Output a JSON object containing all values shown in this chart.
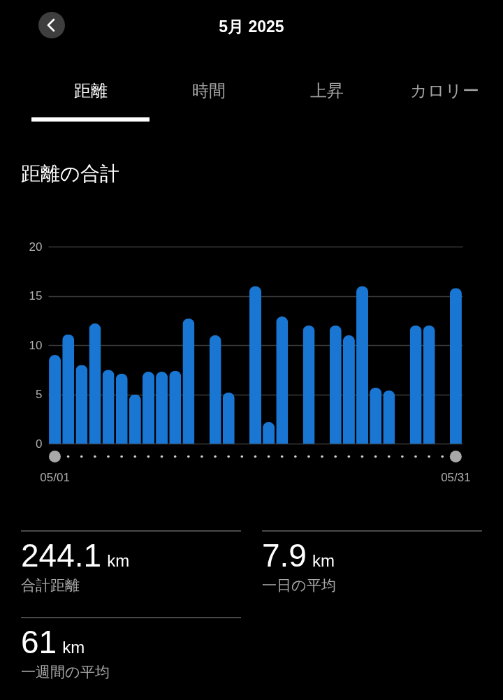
{
  "chart_data": [
    {
      "type": "other",
      "title": "5月 2025",
      "annotations": [
        "距離",
        "時間",
        "上昇",
        "カロリー"
      ]
    },
    {
      "type": "bar",
      "title": "距離の合計",
      "categories": [
        "05/01",
        null,
        null,
        null,
        null,
        null,
        null,
        null,
        null,
        null,
        null,
        null,
        null,
        null,
        null,
        null,
        null,
        null,
        null,
        null,
        null,
        null,
        null,
        null,
        null,
        null,
        null,
        null,
        null,
        null,
        "05/31"
      ],
      "values": [
        9.0,
        11.1,
        8.0,
        12.2,
        7.5,
        7.1,
        5.0,
        7.3,
        7.3,
        7.4,
        12.7,
        null,
        11.0,
        5.2,
        null,
        16.0,
        2.2,
        12.9,
        null,
        12.0,
        null,
        12.0,
        11.0,
        16.0,
        5.7,
        5.4,
        null,
        12.0,
        12.0,
        null,
        15.8
      ],
      "color": "#1976d2",
      "ylim": [
        0,
        20
      ],
      "yticks": [
        0,
        5,
        10,
        15,
        20
      ],
      "grid": "y"
    },
    {
      "type": "other",
      "annotations": [
        "244.1 km",
        "合計距離",
        "7.9 km",
        "一日の平均",
        "61 km",
        "一週間の平均"
      ]
    }
  ]
}
